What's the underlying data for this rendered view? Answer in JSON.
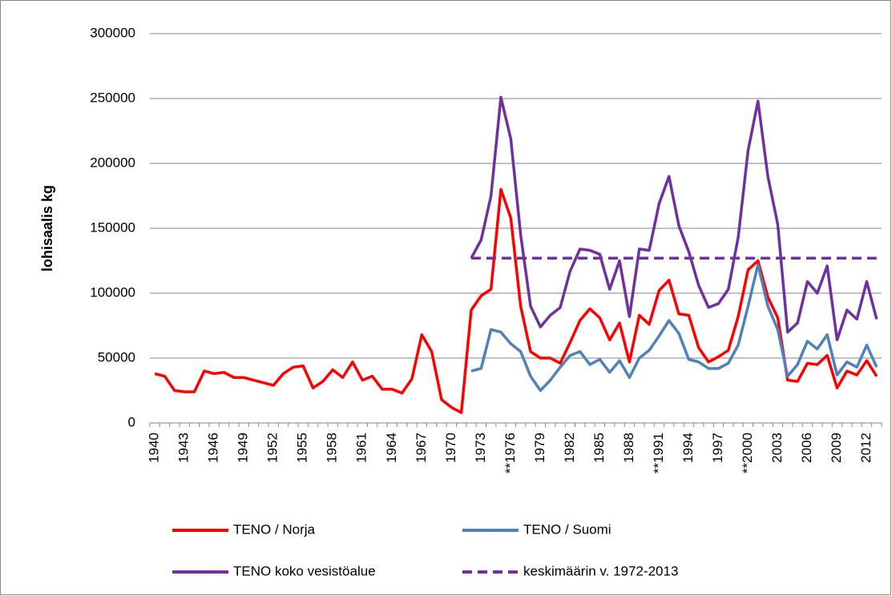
{
  "chart_data": {
    "type": "line",
    "ylabel": "lohisaalis  kg",
    "categories": [
      "1940",
      null,
      null,
      "1943",
      null,
      null,
      "1946",
      null,
      null,
      "1949",
      null,
      null,
      "1952",
      null,
      null,
      "1955",
      null,
      null,
      "1958",
      null,
      null,
      "1961",
      null,
      null,
      "1964",
      null,
      null,
      "1967",
      null,
      null,
      "1970",
      null,
      null,
      "1973",
      null,
      null,
      "**1976",
      null,
      null,
      "1979",
      null,
      null,
      "1982",
      null,
      null,
      "1985",
      null,
      null,
      "1988",
      null,
      null,
      "**1991",
      null,
      null,
      "1994",
      null,
      null,
      "1997",
      null,
      null,
      "**2000",
      null,
      null,
      "2003",
      null,
      null,
      "2006",
      null,
      null,
      "2009",
      null,
      null,
      "2012",
      null
    ],
    "series": [
      {
        "name": "TENO / Norja",
        "color": "#ff0000",
        "dashed": false,
        "values": [
          38000,
          36000,
          25000,
          24000,
          24000,
          40000,
          38000,
          39000,
          35000,
          35000,
          33000,
          31000,
          29000,
          38000,
          43000,
          44000,
          27000,
          32000,
          41000,
          35000,
          47000,
          33000,
          36000,
          26000,
          26000,
          23000,
          34000,
          68000,
          55000,
          18000,
          12000,
          8000,
          87000,
          98000,
          103000,
          180000,
          158000,
          90000,
          55000,
          50000,
          50000,
          46000,
          62000,
          79000,
          88000,
          81000,
          64000,
          77000,
          47000,
          83000,
          76000,
          102000,
          110000,
          84000,
          83000,
          58000,
          47000,
          51000,
          56000,
          82000,
          118000,
          125000,
          97000,
          81000,
          33000,
          32000,
          46000,
          45000,
          52000,
          27000,
          40000,
          37000,
          48000,
          36000
        ]
      },
      {
        "name": "TENO / Suomi",
        "color": "#4f81bd",
        "dashed": false,
        "values": [
          null,
          null,
          null,
          null,
          null,
          null,
          null,
          null,
          null,
          null,
          null,
          null,
          null,
          null,
          null,
          null,
          null,
          null,
          null,
          null,
          null,
          null,
          null,
          null,
          null,
          null,
          null,
          null,
          null,
          null,
          null,
          null,
          40000,
          42000,
          72000,
          70000,
          61000,
          55000,
          36000,
          25000,
          33000,
          43000,
          52000,
          55000,
          45000,
          49000,
          39000,
          48000,
          35000,
          50000,
          56000,
          67000,
          79000,
          69000,
          49000,
          47000,
          42000,
          42000,
          46000,
          60000,
          90000,
          122000,
          90000,
          72000,
          36000,
          45000,
          63000,
          57000,
          68000,
          37000,
          47000,
          43000,
          60000,
          43000
        ]
      },
      {
        "name": "TENO koko vesistöalue",
        "color": "#7030a0",
        "dashed": false,
        "values": [
          null,
          null,
          null,
          null,
          null,
          null,
          null,
          null,
          null,
          null,
          null,
          null,
          null,
          null,
          null,
          null,
          null,
          null,
          null,
          null,
          null,
          null,
          null,
          null,
          null,
          null,
          null,
          null,
          null,
          null,
          null,
          null,
          127000,
          141000,
          175000,
          251000,
          219000,
          145000,
          90000,
          74000,
          83000,
          89000,
          117000,
          134000,
          133000,
          130000,
          103000,
          125000,
          82000,
          134000,
          133000,
          169000,
          190000,
          152000,
          132000,
          106000,
          89000,
          92000,
          103000,
          143000,
          210000,
          248000,
          190000,
          153000,
          70000,
          77000,
          109000,
          100000,
          121000,
          64000,
          87000,
          80000,
          109000,
          80000
        ]
      },
      {
        "name": "keskimäärin v. 1972-2013",
        "color": "#7030a0",
        "dashed": true,
        "values": [
          null,
          null,
          null,
          null,
          null,
          null,
          null,
          null,
          null,
          null,
          null,
          null,
          null,
          null,
          null,
          null,
          null,
          null,
          null,
          null,
          null,
          null,
          null,
          null,
          null,
          null,
          null,
          null,
          null,
          null,
          null,
          null,
          127000,
          127000,
          127000,
          127000,
          127000,
          127000,
          127000,
          127000,
          127000,
          127000,
          127000,
          127000,
          127000,
          127000,
          127000,
          127000,
          127000,
          127000,
          127000,
          127000,
          127000,
          127000,
          127000,
          127000,
          127000,
          127000,
          127000,
          127000,
          127000,
          127000,
          127000,
          127000,
          127000,
          127000,
          127000,
          127000,
          127000,
          127000,
          127000,
          127000,
          127000,
          127000
        ]
      }
    ],
    "ylim": [
      0,
      300000
    ],
    "yticks": [
      0,
      50000,
      100000,
      150000,
      200000,
      250000,
      300000
    ],
    "grid": true
  }
}
